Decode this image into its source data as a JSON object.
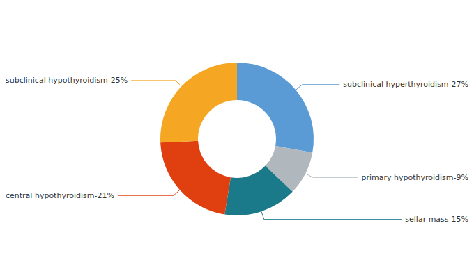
{
  "chart_data": {
    "type": "pie",
    "categories": [
      "subclinical hyperthyroidism-27%",
      "primary hypothyroidism-9%",
      "sellar mass-15%",
      "central hypothyroidism-21%",
      "subclinical hypothyroidism-25%"
    ],
    "values": [
      27,
      9,
      15,
      21,
      25
    ],
    "colors": [
      "#5b9bd5",
      "#b0b8be",
      "#1a7a8a",
      "#e04010",
      "#f5a623"
    ]
  }
}
